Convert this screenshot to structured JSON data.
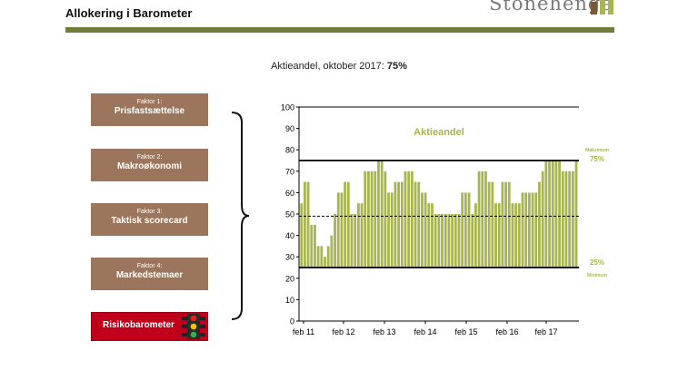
{
  "header": {
    "title": "Allokering i Barometer",
    "logo_text": "Stonehenge"
  },
  "subtitle": {
    "prefix": "Aktieandel, oktober 2017: ",
    "value": "75%"
  },
  "factors": [
    {
      "number": "Faktor 1:",
      "label": "Prisfastsættelse"
    },
    {
      "number": "Faktor 2:",
      "label": "Makroøkonomi"
    },
    {
      "number": "Faktor 3:",
      "label": "Taktisk scorecard"
    },
    {
      "number": "Faktor 4:",
      "label": "Markedstemaer"
    }
  ],
  "risk": {
    "label": "Risikobarometer",
    "icon": "traffic-light-icon"
  },
  "chart_data": {
    "type": "bar",
    "title": "Aktieandel",
    "x_tick_labels": [
      "feb 11",
      "feb 12",
      "feb 13",
      "feb 14",
      "feb 15",
      "feb 16",
      "feb 17"
    ],
    "ylim": [
      0,
      100
    ],
    "yticks": [
      0,
      10,
      20,
      30,
      40,
      50,
      60,
      70,
      80,
      90,
      100
    ],
    "bar_base": 25,
    "values": [
      55,
      65,
      65,
      45,
      45,
      35,
      35,
      30,
      35,
      40,
      50,
      60,
      60,
      65,
      65,
      50,
      50,
      55,
      55,
      70,
      70,
      70,
      70,
      75,
      75,
      70,
      60,
      60,
      65,
      65,
      65,
      70,
      70,
      70,
      65,
      65,
      60,
      60,
      55,
      55,
      50,
      50,
      50,
      50,
      50,
      50,
      50,
      50,
      60,
      60,
      60,
      50,
      55,
      70,
      70,
      70,
      65,
      65,
      55,
      55,
      65,
      65,
      65,
      55,
      55,
      55,
      60,
      60,
      60,
      60,
      60,
      65,
      70,
      75,
      75,
      75,
      75,
      75,
      70,
      70,
      70,
      70,
      75
    ],
    "lines": [
      {
        "value": 75,
        "label": "75%",
        "caption": "Maksimum",
        "style": "solid"
      },
      {
        "value": 25,
        "label": "25%",
        "caption": "Minimum",
        "style": "solid"
      },
      {
        "value": 49,
        "style": "dashed"
      }
    ],
    "bar_color": "#a8b550",
    "grid": false
  }
}
